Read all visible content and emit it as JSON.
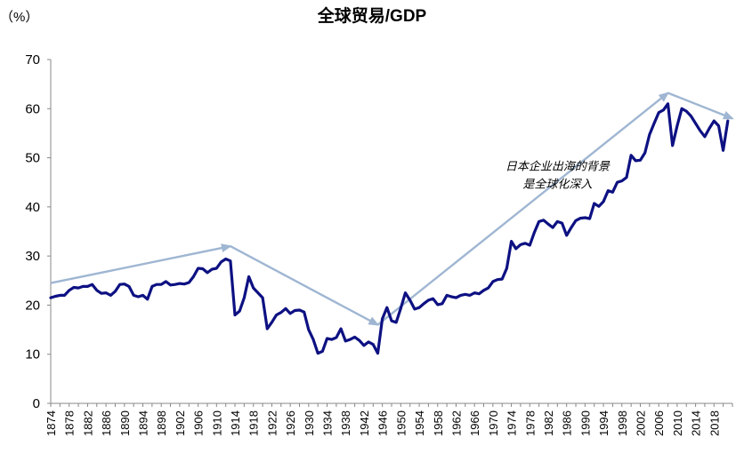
{
  "chart_data": {
    "type": "line",
    "title": "全球贸易/GDP",
    "ylabel": "（%）",
    "xlabel": "",
    "ylim": [
      0,
      70
    ],
    "xlim": [
      1874,
      2022
    ],
    "yticks": [
      0,
      10,
      20,
      30,
      40,
      50,
      60,
      70
    ],
    "xticks": [
      1874,
      1878,
      1882,
      1886,
      1890,
      1894,
      1898,
      1902,
      1906,
      1910,
      1914,
      1918,
      1922,
      1926,
      1930,
      1934,
      1938,
      1942,
      1946,
      1950,
      1954,
      1958,
      1962,
      1966,
      1970,
      1974,
      1978,
      1982,
      1986,
      1990,
      1994,
      1998,
      2002,
      2006,
      2010,
      2014,
      2018
    ],
    "grid": false,
    "legend": "none",
    "colors": {
      "series": "#0d1182",
      "trend": "#9fb6d2",
      "axis": "#888888"
    },
    "series": [
      {
        "name": "全球贸易/GDP",
        "x": [
          1874,
          1875,
          1876,
          1877,
          1878,
          1879,
          1880,
          1881,
          1882,
          1883,
          1884,
          1885,
          1886,
          1887,
          1888,
          1889,
          1890,
          1891,
          1892,
          1893,
          1894,
          1895,
          1896,
          1897,
          1898,
          1899,
          1900,
          1901,
          1902,
          1903,
          1904,
          1905,
          1906,
          1907,
          1908,
          1909,
          1910,
          1911,
          1912,
          1913,
          1914,
          1915,
          1916,
          1917,
          1918,
          1919,
          1920,
          1921,
          1922,
          1923,
          1924,
          1925,
          1926,
          1927,
          1928,
          1929,
          1930,
          1931,
          1932,
          1933,
          1934,
          1935,
          1936,
          1937,
          1938,
          1939,
          1940,
          1941,
          1942,
          1943,
          1944,
          1945,
          1946,
          1947,
          1948,
          1949,
          1950,
          1951,
          1952,
          1953,
          1954,
          1955,
          1956,
          1957,
          1958,
          1959,
          1960,
          1961,
          1962,
          1963,
          1964,
          1965,
          1966,
          1967,
          1968,
          1969,
          1970,
          1971,
          1972,
          1973,
          1974,
          1975,
          1976,
          1977,
          1978,
          1979,
          1980,
          1981,
          1982,
          1983,
          1984,
          1985,
          1986,
          1987,
          1988,
          1989,
          1990,
          1991,
          1992,
          1993,
          1994,
          1995,
          1996,
          1997,
          1998,
          1999,
          2000,
          2001,
          2002,
          2003,
          2004,
          2005,
          2006,
          2007,
          2008,
          2009,
          2010,
          2011,
          2012,
          2013,
          2014,
          2015,
          2016,
          2017,
          2018,
          2019,
          2020,
          2021
        ],
        "values": [
          21.5,
          21.8,
          22.0,
          22.0,
          23.0,
          23.6,
          23.5,
          23.8,
          23.8,
          24.2,
          23.0,
          22.4,
          22.5,
          22.0,
          22.8,
          24.2,
          24.3,
          23.8,
          22.0,
          21.7,
          22.0,
          21.2,
          23.8,
          24.2,
          24.2,
          24.8,
          24.1,
          24.2,
          24.4,
          24.3,
          24.6,
          25.8,
          27.5,
          27.4,
          26.6,
          27.3,
          27.5,
          28.8,
          29.4,
          29.0,
          18.0,
          18.8,
          21.5,
          25.8,
          23.5,
          22.5,
          21.5,
          15.2,
          16.5,
          18.0,
          18.5,
          19.3,
          18.3,
          18.9,
          19.0,
          18.6,
          15.0,
          13.0,
          10.2,
          10.6,
          13.2,
          13.0,
          13.4,
          15.2,
          12.7,
          13.0,
          13.5,
          12.8,
          11.8,
          12.5,
          12.0,
          10.2,
          17.2,
          19.5,
          16.8,
          16.5,
          19.4,
          22.5,
          21.0,
          19.2,
          19.5,
          20.3,
          21.0,
          21.3,
          20.1,
          20.3,
          22.0,
          21.7,
          21.5,
          22.0,
          22.2,
          22.0,
          22.5,
          22.3,
          23.0,
          23.5,
          24.8,
          25.2,
          25.3,
          27.5,
          33.0,
          31.5,
          32.3,
          32.6,
          32.2,
          34.8,
          37.0,
          37.3,
          36.5,
          35.8,
          37.0,
          36.7,
          34.2,
          35.8,
          37.2,
          37.7,
          37.8,
          37.6,
          40.7,
          40.1,
          41.1,
          43.3,
          43.0,
          45.0,
          45.3,
          46.0,
          50.5,
          49.4,
          49.5,
          51.0,
          54.7,
          57.0,
          59.2,
          59.7,
          61.0,
          52.5,
          56.5,
          60.0,
          59.5,
          58.5,
          57.0,
          55.5,
          54.3,
          56.0,
          57.5,
          56.5,
          51.5,
          57.5
        ]
      }
    ],
    "trend_arrows": [
      {
        "from": [
          1874,
          24.5
        ],
        "to": [
          1913,
          32.0
        ]
      },
      {
        "from": [
          1913,
          32.0
        ],
        "to": [
          1945,
          16.0
        ]
      },
      {
        "from": [
          1945,
          16.0
        ],
        "to": [
          2008,
          63.2
        ]
      },
      {
        "from": [
          2008,
          63.2
        ],
        "to": [
          2022,
          58.0
        ]
      }
    ],
    "annotation": {
      "lines": [
        "日本企业出海的背景",
        "是全球化深入"
      ],
      "anchor": [
        1984,
        47.5
      ]
    }
  }
}
